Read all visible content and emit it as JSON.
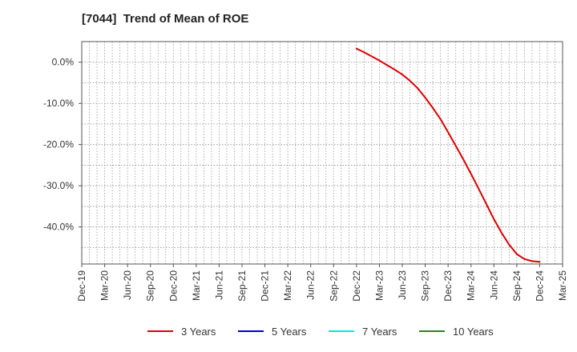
{
  "chart_data": {
    "type": "line",
    "title": "[7044]  Trend of Mean of ROE",
    "xlabel": "",
    "ylabel": "",
    "x_ticks": [
      "Dec-19",
      "Mar-20",
      "Jun-20",
      "Sep-20",
      "Dec-20",
      "Mar-21",
      "Jun-21",
      "Sep-21",
      "Dec-21",
      "Mar-22",
      "Jun-22",
      "Sep-22",
      "Dec-22",
      "Mar-23",
      "Jun-23",
      "Sep-23",
      "Dec-23",
      "Mar-24",
      "Jun-24",
      "Sep-24",
      "Dec-24",
      "Mar-25"
    ],
    "y_ticks": [
      {
        "value": 0,
        "label": "0.0%"
      },
      {
        "value": -10,
        "label": "-10.0%"
      },
      {
        "value": -20,
        "label": "-20.0%"
      },
      {
        "value": -30,
        "label": "-30.0%"
      },
      {
        "value": -40,
        "label": "-40.0%"
      }
    ],
    "ylim": [
      -49,
      5
    ],
    "grid": true,
    "legend_position": "bottom",
    "series": [
      {
        "name": "3 Years",
        "color": "#dd0000",
        "x": [
          "Dec-22",
          "Jan-23",
          "Feb-23",
          "Mar-23",
          "Apr-23",
          "May-23",
          "Jun-23",
          "Jul-23",
          "Aug-23",
          "Sep-23",
          "Oct-23",
          "Nov-23",
          "Dec-23",
          "Jan-24",
          "Feb-24",
          "Mar-24",
          "Apr-24",
          "May-24",
          "Jun-24",
          "Jul-24",
          "Aug-24",
          "Sep-24",
          "Oct-24",
          "Nov-24",
          "Dec-24"
        ],
        "values": [
          3.3,
          2.4,
          1.4,
          0.4,
          -0.7,
          -1.8,
          -3.0,
          -4.5,
          -6.3,
          -8.6,
          -11.1,
          -13.8,
          -17.0,
          -20.3,
          -23.6,
          -27.1,
          -30.7,
          -34.4,
          -38.1,
          -41.4,
          -44.3,
          -46.6,
          -47.8,
          -48.3,
          -48.5
        ]
      },
      {
        "name": "5 Years",
        "color": "#0000cc",
        "x": [],
        "values": []
      },
      {
        "name": "7 Years",
        "color": "#00e5ee",
        "x": [],
        "values": []
      },
      {
        "name": "10 Years",
        "color": "#228b22",
        "x": [],
        "values": []
      }
    ]
  }
}
